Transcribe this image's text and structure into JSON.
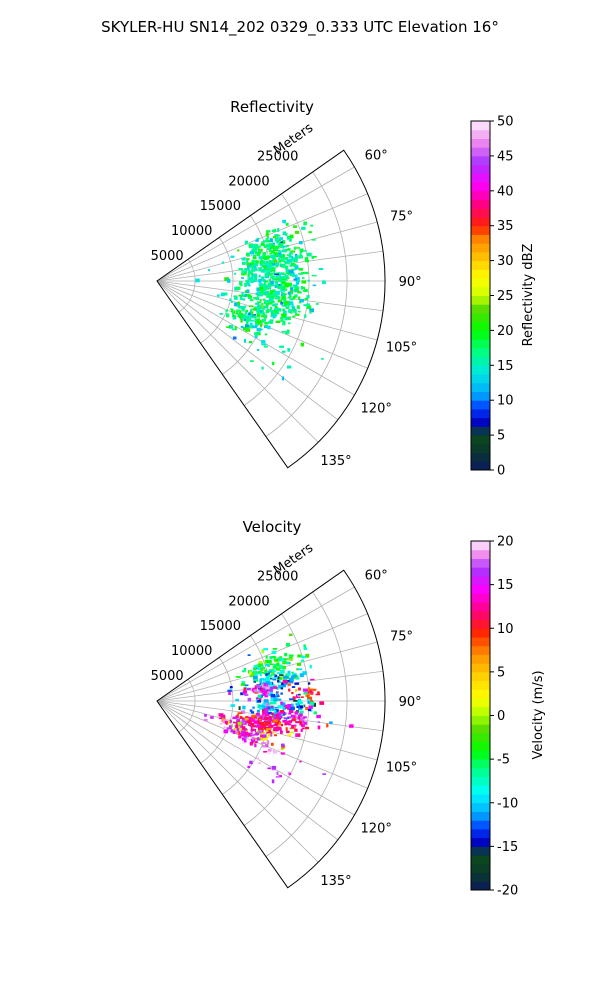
{
  "figure": {
    "suptitle": "SKYLER-HU  SN14_202  0329_0.333 UTC Elevation 16°"
  },
  "chart_data": [
    {
      "type": "polar_scatter",
      "title": "Reflectivity",
      "radial_label": "Meters",
      "radial_ticks": [
        "5000",
        "10000",
        "15000",
        "20000",
        "25000"
      ],
      "radial_tick_values": [
        5000,
        10000,
        15000,
        20000,
        25000
      ],
      "rlim": [
        0,
        30000
      ],
      "theta_range_deg": [
        55,
        145
      ],
      "theta_ticks": [
        "60°",
        "75°",
        "90°",
        "105°",
        "120°",
        "135°"
      ],
      "theta_tick_values": [
        60,
        75,
        90,
        105,
        120,
        135
      ],
      "grid": true,
      "colorbar": {
        "label": "Reflectivity dBZ",
        "min": 0,
        "max": 50,
        "ticks": [
          "0",
          "5",
          "10",
          "15",
          "20",
          "25",
          "30",
          "35",
          "40",
          "45",
          "50"
        ],
        "tick_values": [
          0,
          5,
          10,
          15,
          20,
          25,
          30,
          35,
          40,
          45,
          50
        ],
        "levels": 40,
        "colormap": "NWSRef-like"
      },
      "clusters": [
        {
          "theta": 72,
          "r": 16000,
          "spread_theta": 3.5,
          "spread_r": 2200,
          "value": 17,
          "n": 110
        },
        {
          "theta": 80,
          "r": 15000,
          "spread_theta": 3.0,
          "spread_r": 2400,
          "value": 17,
          "n": 120
        },
        {
          "theta": 88,
          "r": 15500,
          "spread_theta": 3.0,
          "spread_r": 2600,
          "value": 16,
          "n": 130
        },
        {
          "theta": 96,
          "r": 15500,
          "spread_theta": 3.0,
          "spread_r": 2400,
          "value": 17,
          "n": 120
        },
        {
          "theta": 104,
          "r": 15000,
          "spread_theta": 3.0,
          "spread_r": 2200,
          "value": 17,
          "n": 110
        },
        {
          "theta": 112,
          "r": 12500,
          "spread_theta": 3.5,
          "spread_r": 2000,
          "value": 17,
          "n": 80
        },
        {
          "theta": 118,
          "r": 16000,
          "spread_theta": 6.0,
          "spread_r": 3000,
          "value": 16,
          "n": 30
        }
      ]
    },
    {
      "type": "polar_scatter",
      "title": "Velocity",
      "radial_label": "Meters",
      "radial_ticks": [
        "5000",
        "10000",
        "15000",
        "20000",
        "25000"
      ],
      "radial_tick_values": [
        5000,
        10000,
        15000,
        20000,
        25000
      ],
      "rlim": [
        0,
        30000
      ],
      "theta_range_deg": [
        55,
        145
      ],
      "theta_ticks": [
        "60°",
        "75°",
        "90°",
        "105°",
        "120°",
        "135°"
      ],
      "theta_tick_values": [
        60,
        75,
        90,
        105,
        120,
        135
      ],
      "grid": true,
      "colorbar": {
        "label": "Velocity (m/s)",
        "min": -20,
        "max": 20,
        "ticks": [
          "-20",
          "-15",
          "-10",
          "-5",
          "0",
          "5",
          "10",
          "15",
          "20"
        ],
        "tick_values": [
          -20,
          -15,
          -10,
          -5,
          0,
          5,
          10,
          15,
          20
        ],
        "levels": 40,
        "colormap": "NWSVel-like"
      },
      "clusters": [
        {
          "theta": 72,
          "r": 16000,
          "spread_theta": 3.5,
          "spread_r": 2200,
          "value": -5,
          "n": 110
        },
        {
          "theta": 80,
          "r": 15500,
          "spread_theta": 3.0,
          "spread_r": 2400,
          "value": -10,
          "n": 100
        },
        {
          "theta": 84,
          "r": 13500,
          "spread_theta": 2.5,
          "spread_r": 1500,
          "value": 15,
          "n": 50
        },
        {
          "theta": 87,
          "r": 19500,
          "spread_theta": 2.5,
          "spread_r": 1200,
          "value": 9,
          "n": 30
        },
        {
          "theta": 92,
          "r": 16000,
          "spread_theta": 3.0,
          "spread_r": 2500,
          "value": -11,
          "n": 100
        },
        {
          "theta": 96,
          "r": 16500,
          "spread_theta": 2.5,
          "spread_r": 2500,
          "value": 14,
          "n": 80
        },
        {
          "theta": 101,
          "r": 15000,
          "spread_theta": 2.0,
          "spread_r": 2200,
          "value": 12,
          "n": 90
        },
        {
          "theta": 104,
          "r": 12500,
          "spread_theta": 2.5,
          "spread_r": 2000,
          "value": 13,
          "n": 70
        },
        {
          "theta": 108,
          "r": 13500,
          "spread_theta": 2.5,
          "spread_r": 2000,
          "value": 3,
          "n": 40
        },
        {
          "theta": 110,
          "r": 12000,
          "spread_theta": 3.0,
          "spread_r": 2000,
          "value": 17,
          "n": 60
        },
        {
          "theta": 116,
          "r": 16000,
          "spread_theta": 6.0,
          "spread_r": 3000,
          "value": 17,
          "n": 25
        }
      ]
    }
  ]
}
